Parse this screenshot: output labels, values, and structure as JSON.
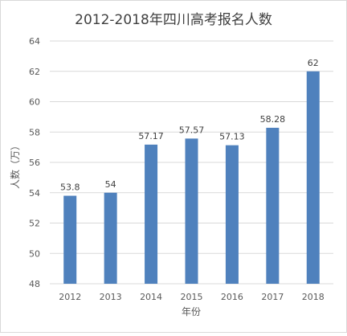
{
  "chart_data": {
    "type": "bar",
    "title": "2012-2018年四川高考报名人数",
    "xlabel": "年份",
    "ylabel": "人数（万）",
    "categories": [
      "2012",
      "2013",
      "2014",
      "2015",
      "2016",
      "2017",
      "2018"
    ],
    "values": [
      53.8,
      54,
      57.17,
      57.57,
      57.13,
      58.28,
      62
    ],
    "data_labels": [
      "53.8",
      "54",
      "57.17",
      "57.57",
      "57.13",
      "58.28",
      "62"
    ],
    "ylim": [
      48,
      64
    ],
    "yticks": [
      "48",
      "50",
      "52",
      "54",
      "56",
      "58",
      "60",
      "62",
      "64"
    ],
    "grid": true,
    "legend": "none",
    "colors": {
      "bar": "#4f81bd",
      "grid": "#d9d9d9",
      "text": "#595959",
      "frame": "#d9d9d9"
    }
  }
}
